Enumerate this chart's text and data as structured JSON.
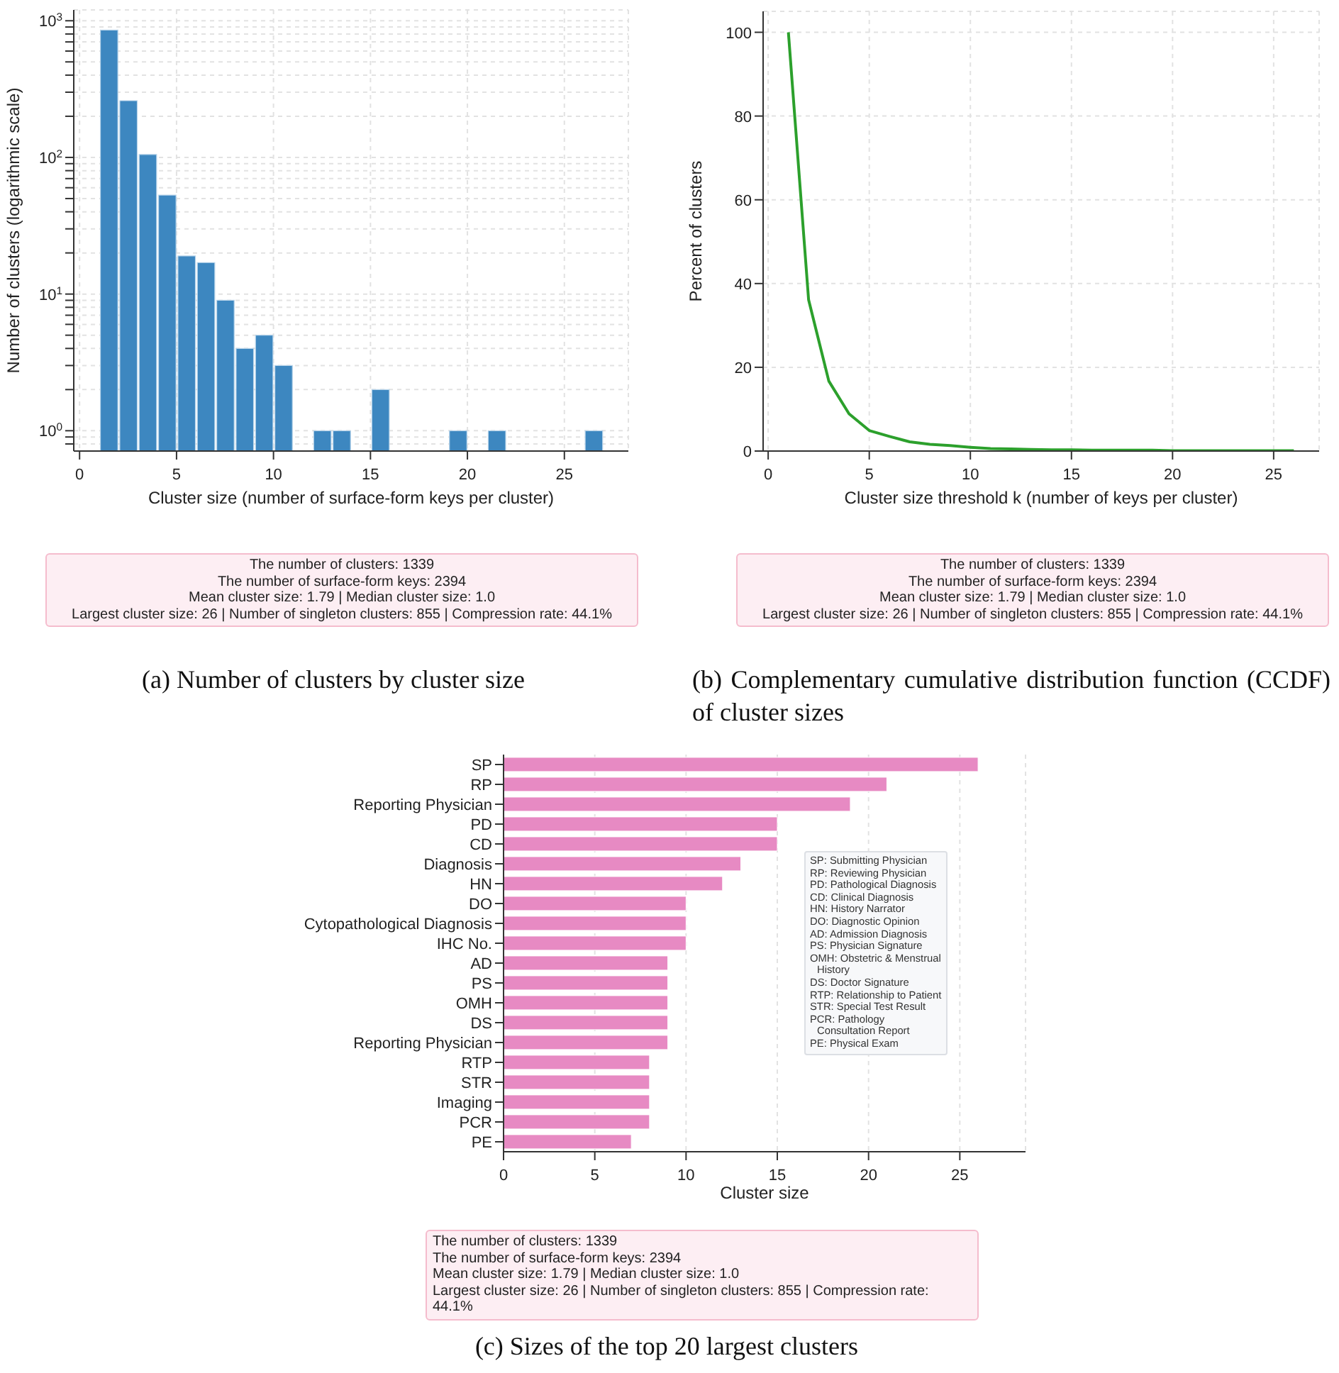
{
  "chart_data": [
    {
      "type": "histogram",
      "title": "(a) Number of clusters by cluster size",
      "xlabel": "Cluster size (number of surface-form keys per cluster)",
      "ylabel": "Number of clusters (logarithmic scale)",
      "bins": [
        1,
        2,
        3,
        4,
        5,
        6,
        7,
        8,
        9,
        10,
        11,
        12,
        13,
        14,
        15,
        16,
        17,
        18,
        19,
        20,
        21,
        22,
        23,
        24,
        25,
        26,
        27
      ],
      "values": [
        855,
        260,
        105,
        53,
        19,
        17,
        9,
        4,
        5,
        3,
        null,
        1,
        1,
        null,
        2,
        null,
        null,
        null,
        1,
        null,
        1,
        null,
        null,
        null,
        null,
        1
      ],
      "color": "#3d87c0",
      "log": "y",
      "xlim": [
        -0.3,
        28.3
      ],
      "xticks": [
        0,
        5,
        10,
        15,
        20,
        25
      ],
      "ylim": [
        0.71,
        1200
      ],
      "yticks": [
        {
          "value": 0.8,
          "label": null
        },
        {
          "value": 0.9,
          "label": null
        },
        {
          "value": 1,
          "label": "10$^{0}$"
        },
        {
          "value": 2,
          "label": null
        },
        {
          "value": 3,
          "label": null
        },
        {
          "value": 4,
          "label": null
        },
        {
          "value": 5,
          "label": null
        },
        {
          "value": 6,
          "label": null
        },
        {
          "value": 7,
          "label": null
        },
        {
          "value": 8,
          "label": null
        },
        {
          "value": 9,
          "label": null
        },
        {
          "value": 10,
          "label": "10$^{1}$"
        },
        {
          "value": 20,
          "label": null
        },
        {
          "value": 30,
          "label": null
        },
        {
          "value": 40,
          "label": null
        },
        {
          "value": 50,
          "label": null
        },
        {
          "value": 60,
          "label": null
        },
        {
          "value": 70,
          "label": null
        },
        {
          "value": 80,
          "label": null
        },
        {
          "value": 90,
          "label": null
        },
        {
          "value": 100,
          "label": "10$^{2}$"
        },
        {
          "value": 200,
          "label": null
        },
        {
          "value": 300,
          "label": null
        },
        {
          "value": 400,
          "label": null
        },
        {
          "value": 500,
          "label": null
        },
        {
          "value": 600,
          "label": null
        },
        {
          "value": 700,
          "label": null
        },
        {
          "value": 800,
          "label": null
        },
        {
          "value": 900,
          "label": null
        },
        {
          "value": 1000,
          "label": "10$^{3}$"
        }
      ],
      "grid": true,
      "annotations": [
        "The number of clusters: 1339\nThe number of surface-form keys: 2394\nMean cluster size: 1.79 | Median cluster size: 1.0\nLargest cluster size: 26 | Number of singleton clusters: 855 | Compression rate: 44.1%"
      ]
    },
    {
      "type": "line",
      "title": "(b) Complementary cumulative distribution function (CCDF) of cluster sizes",
      "xlabel": "Cluster size threshold k (number of keys per cluster)",
      "ylabel": "Percent of clusters",
      "x": [
        1,
        2,
        3,
        4,
        5,
        6,
        7,
        8,
        9,
        10,
        11,
        12,
        13,
        14,
        15,
        16,
        17,
        18,
        19,
        20,
        21,
        22,
        23,
        24,
        25,
        26
      ],
      "values": [
        100,
        36.1,
        16.7,
        8.9,
        4.9,
        3.5,
        2.2,
        1.6,
        1.3,
        0.9,
        0.6,
        0.5,
        0.4,
        0.3,
        0.3,
        0.2,
        0.2,
        0.2,
        0.2,
        0.1,
        0.1,
        0.1,
        0.1,
        0.1,
        0.1,
        0.1
      ],
      "color": "#2ca02c",
      "xlim": [
        -0.25,
        27.25
      ],
      "xticks": [
        0,
        5,
        10,
        15,
        20,
        25
      ],
      "ylim": [
        0,
        105
      ],
      "yticks": [
        0,
        20,
        40,
        60,
        80,
        100
      ],
      "grid": true,
      "annotations": [
        "The number of clusters: 1339\nThe number of surface-form keys: 2394\nMean cluster size: 1.79 | Median cluster size: 1.0\nLargest cluster size: 26 | Number of singleton clusters: 855 | Compression rate: 44.1%"
      ]
    },
    {
      "type": "bar",
      "orientation": "horizontal",
      "title": "(c) Sizes of the top 20 largest clusters",
      "xlabel": "Cluster size",
      "categories": [
        "SP",
        "RP",
        "Reporting Physician",
        "PD",
        "CD",
        "Diagnosis",
        "HN",
        "DO",
        "Cytopathological Diagnosis",
        "IHC No.",
        "AD",
        "PS",
        "OMH",
        "DS",
        "Reporting Physician",
        "RTP",
        "STR",
        "Imaging",
        "PCR",
        "PE"
      ],
      "values": [
        26,
        21,
        19,
        15,
        15,
        13,
        12,
        10,
        10,
        10,
        9,
        9,
        9,
        9,
        9,
        8,
        8,
        8,
        8,
        7
      ],
      "color": "#e78ac3",
      "xlim": [
        0,
        28.6
      ],
      "xticks": [
        0,
        5,
        10,
        15,
        20,
        25
      ],
      "grid": "x",
      "annotations": [
        "SP: Submitting Physician\nRP: Reviewing Physician\nPD: Pathological Diagnosis\nCD: Clinical Diagnosis\nHN: History Narrator\nDO: Diagnostic Opinion\nAD: Admission Diagnosis\nPS: Physician Signature\nOMH: Obstetric & Menstrual History\nDS: Doctor Signature\nRTP: Relationship to Patient\nSTR: Special Test Result\nPCR: Pathology Consultation Report\nPE: Physical Exam",
        "The number of clusters: 1339\nThe number of surface-form keys: 2394\nMean cluster size: 1.79 | Median cluster size: 1.0\nLargest cluster size: 26 | Number of singleton clusters: 855 | Compression rate: 44.1%"
      ]
    }
  ]
}
